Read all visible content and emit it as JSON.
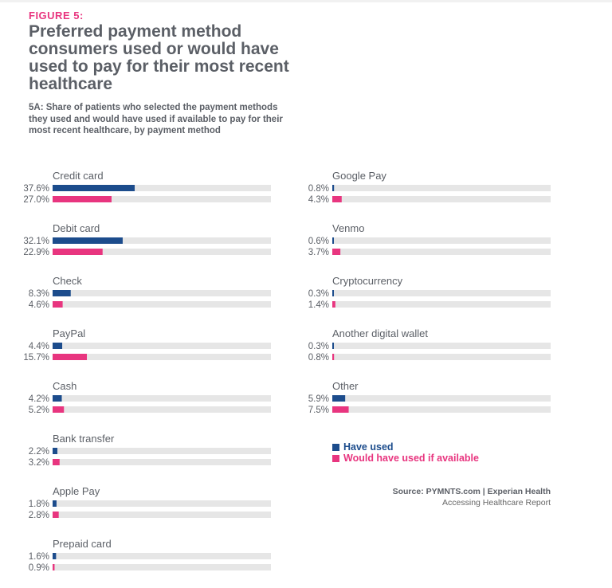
{
  "figure_label": "FIGURE 5:",
  "title": "Preferred payment method consumers used or would have used to pay for their most recent healthcare",
  "subtitle": "5A: Share of patients who selected the payment methods they used and would have used if available to pay for their most recent healthcare, by payment method",
  "source": {
    "line1": "Source: PYMNTS.com  |  Experian Health",
    "line2": "Accessing Healthcare Report"
  },
  "colors": {
    "have_used": "#1c4c8c",
    "would_have_used": "#e8357f",
    "track": "#e6e6e6",
    "text": "#5b5f66"
  },
  "chart_data": {
    "type": "bar",
    "orientation": "horizontal",
    "xlim": [
      0,
      100
    ],
    "unit": "%",
    "legend_placement": "bottom-right",
    "categories": [
      "Credit card",
      "Debit card",
      "Check",
      "PayPal",
      "Cash",
      "Bank transfer",
      "Apple Pay",
      "Prepaid card",
      "Google Pay",
      "Venmo",
      "Cryptocurrency",
      "Another digital wallet",
      "Other"
    ],
    "series": [
      {
        "name": "Have used",
        "color": "#1c4c8c",
        "values": [
          37.6,
          32.1,
          8.3,
          4.4,
          4.2,
          2.2,
          1.8,
          1.6,
          0.8,
          0.6,
          0.3,
          0.3,
          5.9
        ]
      },
      {
        "name": "Would have used if available",
        "color": "#e8357f",
        "values": [
          27.0,
          22.9,
          4.6,
          15.7,
          5.2,
          3.2,
          2.8,
          0.9,
          4.3,
          3.7,
          1.4,
          0.8,
          7.5
        ]
      }
    ]
  }
}
